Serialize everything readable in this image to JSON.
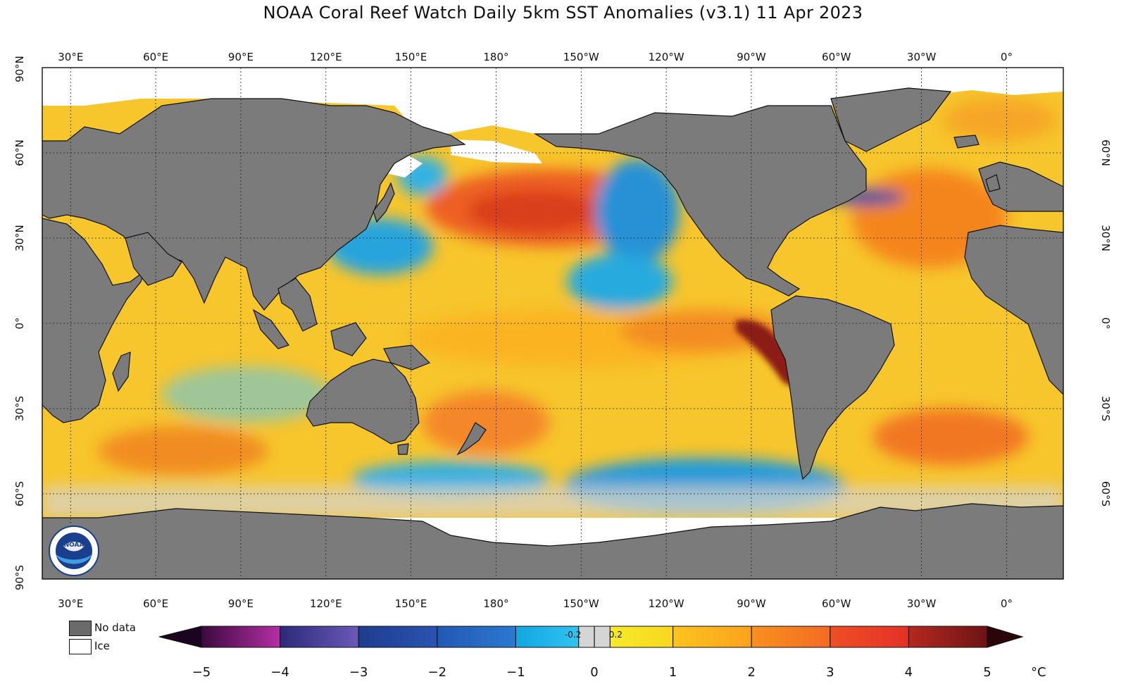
{
  "title": "NOAA Coral Reef Watch Daily 5km SST Anomalies  (v3.1)   11 Apr 2023",
  "map": {
    "longitude_labels": [
      "30°E",
      "60°E",
      "90°E",
      "120°E",
      "150°E",
      "180°",
      "150°W",
      "120°W",
      "90°W",
      "60°W",
      "30°W",
      "0°"
    ],
    "longitude_values": [
      30,
      60,
      90,
      120,
      150,
      180,
      210,
      240,
      270,
      300,
      330,
      360
    ],
    "left_latitude_labels": [
      "90°N",
      "60°N",
      "30°N",
      "0°",
      "30°S",
      "60°S",
      "90°S"
    ],
    "left_latitude_values": [
      90,
      60,
      30,
      0,
      -30,
      -60,
      -90
    ],
    "right_latitude_labels": [
      "60°N",
      "30°N",
      "0°",
      "30°S",
      "60°S"
    ],
    "right_latitude_values": [
      60,
      30,
      0,
      -30,
      -60
    ],
    "longitude_range": [
      20,
      380
    ],
    "latitude_range": [
      -90,
      90
    ],
    "colors": {
      "land": "#7b7b7b",
      "ice": "#ffffff",
      "ocean_base": "#f6c72e"
    }
  },
  "legend": {
    "no_data_label": "No data",
    "ice_label": "Ice",
    "no_data_color": "#6b6b6b",
    "ice_color": "#ffffff"
  },
  "colorbar": {
    "tick_labels": [
      "−5",
      "−4",
      "−3",
      "−2",
      "−1",
      "0",
      "1",
      "2",
      "3",
      "4",
      "5"
    ],
    "tick_values": [
      -5,
      -4,
      -3,
      -2,
      -1,
      0,
      1,
      2,
      3,
      4,
      5
    ],
    "small_labels": [
      "-0.2",
      "0.2"
    ],
    "small_values": [
      -0.2,
      0.2
    ],
    "unit": "°C",
    "stops": [
      {
        "from": -5,
        "to": -4,
        "c1": "#3b0a3e",
        "c2": "#b52ea6"
      },
      {
        "from": -4,
        "to": -3,
        "c1": "#2c2a7a",
        "c2": "#6b59b8"
      },
      {
        "from": -3,
        "to": -2,
        "c1": "#1e3d8f",
        "c2": "#2a53b0"
      },
      {
        "from": -2,
        "to": -1,
        "c1": "#2358b4",
        "c2": "#2b79d1"
      },
      {
        "from": -1,
        "to": -0.2,
        "c1": "#12a6e3",
        "c2": "#2fc3f0"
      },
      {
        "from": -0.2,
        "to": 0.2,
        "c1": "#d5d5d5",
        "c2": "#d5d5d5"
      },
      {
        "from": 0.2,
        "to": 1,
        "c1": "#f5ea2a",
        "c2": "#f9d71e"
      },
      {
        "from": 1,
        "to": 2,
        "c1": "#fbc41f",
        "c2": "#fba11d"
      },
      {
        "from": 2,
        "to": 3,
        "c1": "#f8901f",
        "c2": "#f36b23"
      },
      {
        "from": 3,
        "to": 4,
        "c1": "#ef4f25",
        "c2": "#e33226"
      },
      {
        "from": 4,
        "to": 5,
        "c1": "#b5281f",
        "c2": "#6d1416"
      }
    ],
    "end_low_color": "#1a0420",
    "end_high_color": "#2a0608"
  }
}
